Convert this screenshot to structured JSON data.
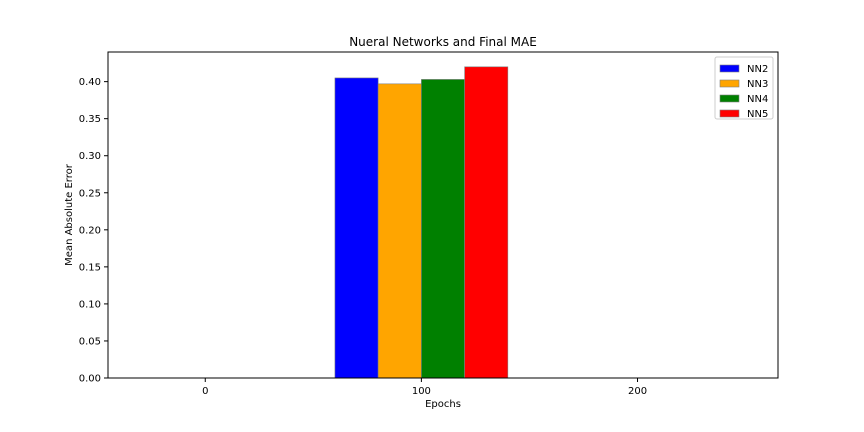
{
  "chart_data": {
    "type": "bar",
    "title": "Nueral Networks and Final MAE",
    "xlabel": "Epochs",
    "ylabel": "Mean Absolute Error",
    "x_ticks": [
      0,
      100,
      200
    ],
    "xlim": [
      -45,
      265
    ],
    "ylim": [
      0,
      0.44
    ],
    "y_ticks": [
      "0.00",
      "0.05",
      "0.10",
      "0.15",
      "0.20",
      "0.25",
      "0.30",
      "0.35",
      "0.40"
    ],
    "grid": false,
    "legend_position": "top-right",
    "category": 100,
    "bar_width": 20,
    "series": [
      {
        "name": "NN2",
        "value": 0.405,
        "color": "#0000ff",
        "offset": -30
      },
      {
        "name": "NN3",
        "value": 0.397,
        "color": "#ffa500",
        "offset": -10
      },
      {
        "name": "NN4",
        "value": 0.403,
        "color": "#008000",
        "offset": 10
      },
      {
        "name": "NN5",
        "value": 0.42,
        "color": "#ff0000",
        "offset": 30
      }
    ]
  }
}
